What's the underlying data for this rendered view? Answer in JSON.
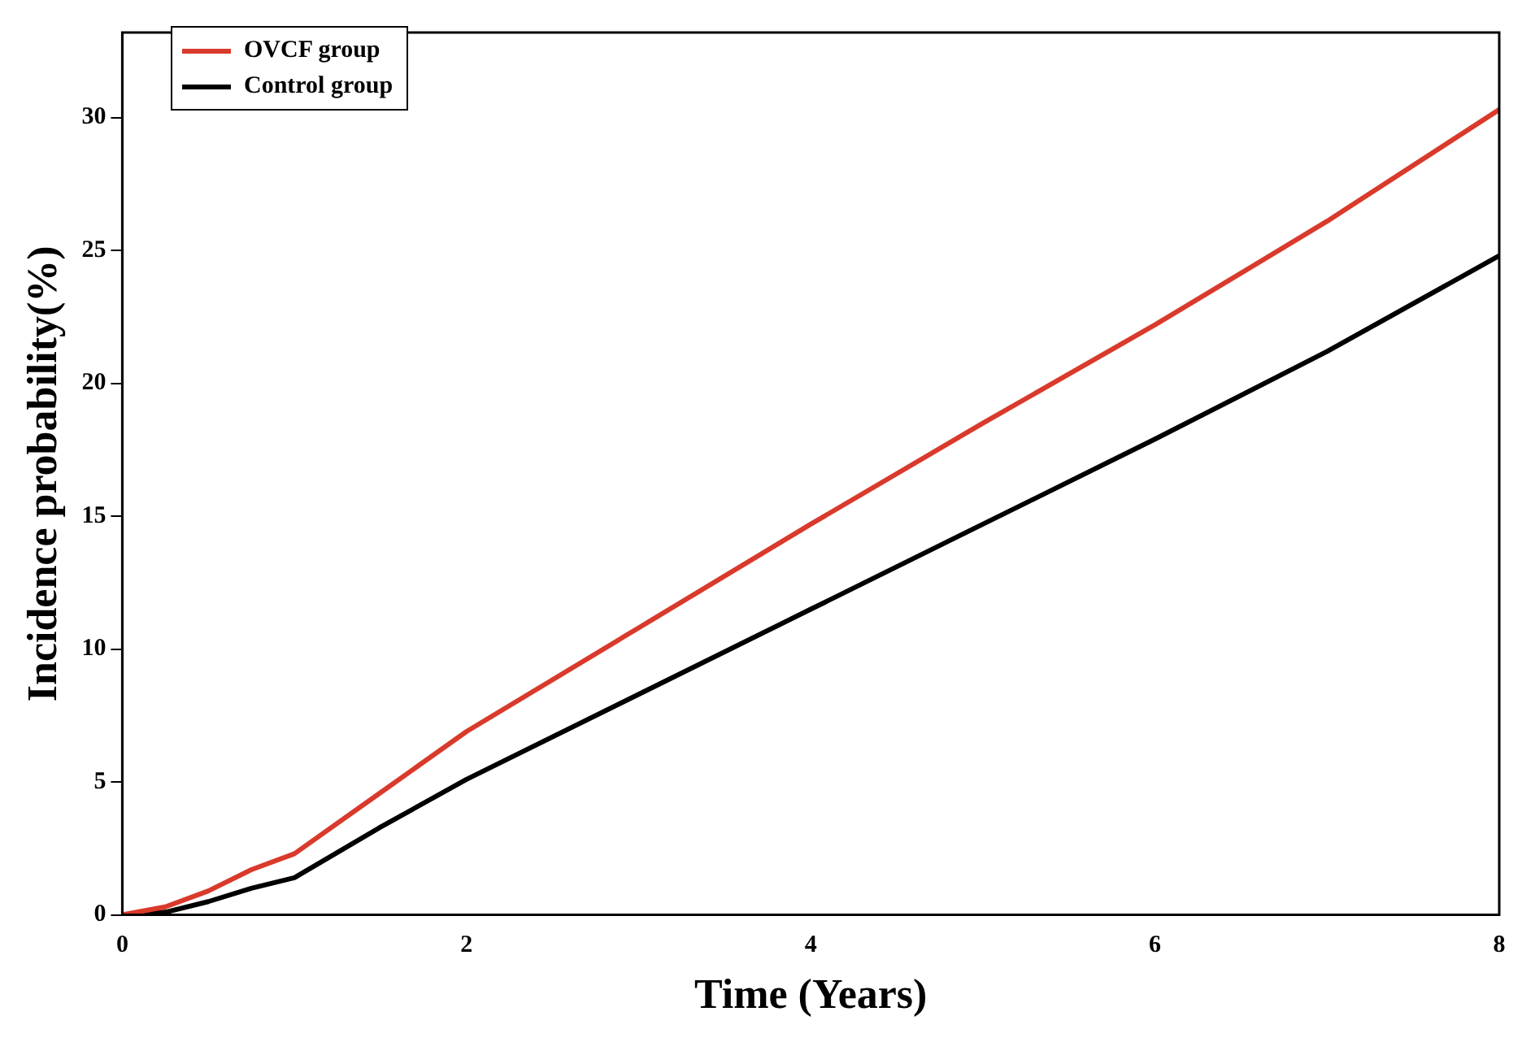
{
  "chart_data": {
    "type": "line",
    "xlabel": "Time (Years)",
    "ylabel": "Incidence probability(%)",
    "xlim": [
      0,
      8
    ],
    "xticks": [
      0,
      2,
      4,
      6,
      8
    ],
    "ylim": [
      0,
      33.2
    ],
    "yticks": [
      0,
      5,
      10,
      15,
      20,
      25,
      30
    ],
    "legend": "top left",
    "grid": false,
    "marker": "none",
    "line_style": "solid",
    "series": [
      {
        "name": "OVCF group",
        "color": "#d93a2b",
        "x": [
          0,
          0.25,
          0.5,
          0.75,
          1,
          1.5,
          2,
          3,
          4,
          5,
          6,
          7,
          8
        ],
        "values": [
          0,
          0.3,
          0.9,
          1.7,
          2.3,
          4.6,
          6.9,
          10.8,
          14.7,
          18.5,
          22.2,
          26.1,
          30.3
        ]
      },
      {
        "name": "Control group",
        "color": "#000000",
        "x": [
          0,
          0.25,
          0.5,
          0.75,
          1,
          1.5,
          2,
          3,
          4,
          5,
          6,
          7,
          8
        ],
        "values": [
          0,
          0.1,
          0.5,
          1.0,
          1.4,
          3.3,
          5.1,
          8.3,
          11.5,
          14.7,
          17.9,
          21.2,
          24.8
        ]
      }
    ]
  }
}
